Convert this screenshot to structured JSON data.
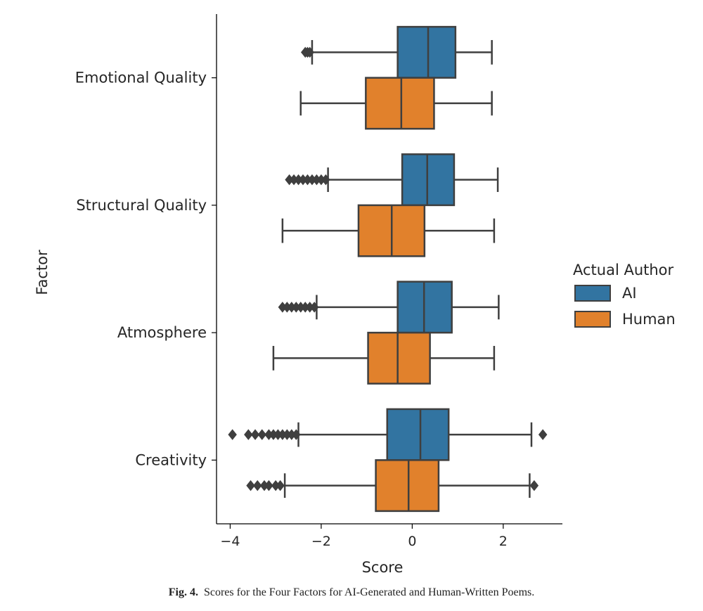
{
  "caption": {
    "label": "Fig. 4.",
    "text": "Scores for the Four Factors for AI-Generated and Human-Written Poems."
  },
  "chart_data": {
    "type": "boxplot",
    "orientation": "horizontal",
    "xlabel": "Score",
    "ylabel": "Factor",
    "xlim": [
      -4.3,
      3.3
    ],
    "xticks": [
      -4,
      -2,
      0,
      2
    ],
    "xtick_labels": [
      "−4",
      "−2",
      "0",
      "2"
    ],
    "grid": false,
    "legend": {
      "title": "Actual Author",
      "placement": "right"
    },
    "categories": [
      "Emotional Quality",
      "Structural Quality",
      "Atmosphere",
      "Creativity"
    ],
    "series": [
      {
        "name": "AI",
        "color": "#3274a1",
        "boxes": [
          {
            "whisker_low": -2.2,
            "q1": -0.32,
            "median": 0.35,
            "q3": 0.95,
            "whisker_high": 1.75,
            "outliers": [
              -2.35,
              -2.3,
              -2.25
            ]
          },
          {
            "whisker_low": -1.85,
            "q1": -0.22,
            "median": 0.33,
            "q3": 0.92,
            "whisker_high": 1.88,
            "outliers": [
              -2.7,
              -2.6,
              -2.5,
              -2.4,
              -2.3,
              -2.2,
              -2.1,
              -2.0,
              -1.9
            ]
          },
          {
            "whisker_low": -2.1,
            "q1": -0.32,
            "median": 0.26,
            "q3": 0.87,
            "whisker_high": 1.9,
            "outliers": [
              -2.85,
              -2.75,
              -2.65,
              -2.55,
              -2.45,
              -2.35,
              -2.25,
              -2.15
            ]
          },
          {
            "whisker_low": -2.5,
            "q1": -0.55,
            "median": 0.18,
            "q3": 0.8,
            "whisker_high": 2.62,
            "outliers": [
              -3.95,
              -3.6,
              -3.45,
              -3.3,
              -3.15,
              -3.05,
              -2.95,
              -2.85,
              -2.75,
              -2.65,
              -2.55,
              2.87
            ]
          }
        ]
      },
      {
        "name": "Human",
        "color": "#e1812c",
        "boxes": [
          {
            "whisker_low": -2.45,
            "q1": -1.02,
            "median": -0.24,
            "q3": 0.48,
            "whisker_high": 1.75,
            "outliers": []
          },
          {
            "whisker_low": -2.85,
            "q1": -1.18,
            "median": -0.45,
            "q3": 0.27,
            "whisker_high": 1.8,
            "outliers": []
          },
          {
            "whisker_low": -3.05,
            "q1": -0.97,
            "median": -0.32,
            "q3": 0.39,
            "whisker_high": 1.8,
            "outliers": []
          },
          {
            "whisker_low": -2.8,
            "q1": -0.8,
            "median": -0.08,
            "q3": 0.58,
            "whisker_high": 2.58,
            "outliers": [
              -3.55,
              -3.4,
              -3.25,
              -3.15,
              -3.0,
              -2.9,
              2.68
            ]
          }
        ]
      }
    ]
  }
}
